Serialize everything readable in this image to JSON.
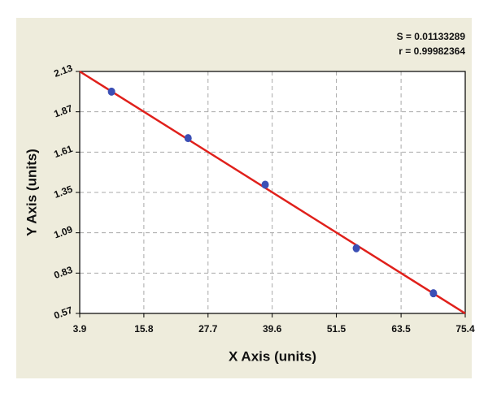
{
  "chart_data": {
    "type": "scatter",
    "annotations": [
      "S = 0.01133289",
      "r = 0.99982364"
    ],
    "x_label": "X Axis (units)",
    "y_label": "Y Axis (units)",
    "x": [
      9.8,
      24.0,
      38.3,
      55.2,
      69.5
    ],
    "values": [
      2.0,
      1.7,
      1.4,
      0.99,
      0.7
    ],
    "color": "#3b4fb5",
    "fit_line": {
      "x": [
        3.9,
        75.4
      ],
      "values": [
        2.13,
        0.57
      ],
      "color": "#e0201b"
    },
    "xlim": [
      3.9,
      75.4
    ],
    "xticks": [
      3.9,
      15.8,
      27.7,
      39.6,
      51.5,
      63.5,
      75.4
    ],
    "ylim": [
      0.57,
      2.13
    ],
    "yticks": [
      0.57,
      0.83,
      1.09,
      1.35,
      1.61,
      1.87,
      2.13
    ],
    "grid": true
  }
}
